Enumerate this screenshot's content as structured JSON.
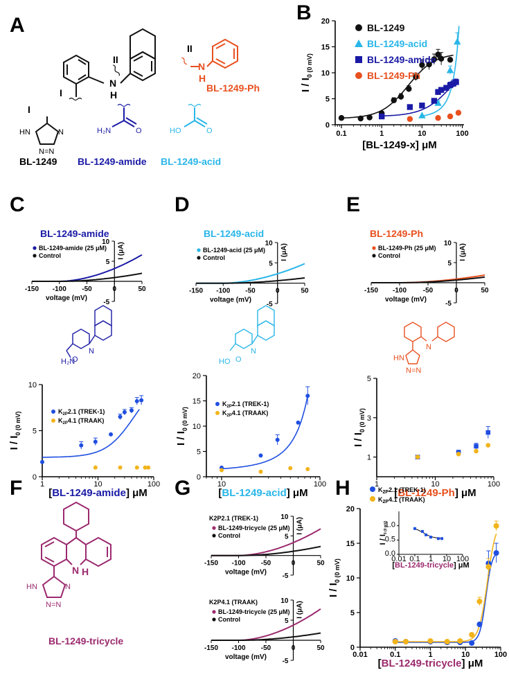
{
  "colors": {
    "black": "#111111",
    "acid": "#29b6e8",
    "amide": "#1a1aa6",
    "ph": "#e8501e",
    "trek": "#1f4fe0",
    "traak": "#f2b41c",
    "tricycle": "#9b2a6e"
  },
  "panels": {
    "A": "A",
    "B": "B",
    "C": "C",
    "D": "D",
    "E": "E",
    "F": "F",
    "G": "G",
    "H": "H"
  },
  "structures": {
    "roman_one": "I",
    "roman_two": "II",
    "nh": "N",
    "h": "H",
    "names": {
      "bl1249": "BL-1249",
      "amide": "BL-1249-amide",
      "acid": "BL-1249-acid",
      "ph": "BL-1249-Ph",
      "tricycle": "BL-1249-tricycle"
    },
    "tetrazole_hn": "HN",
    "tetrazole_n": "N",
    "tetrazole_nn": "N=N",
    "amide_h2n": "H₂N",
    "amide_o": "O",
    "acid_ho": "HO",
    "acid_o": "O"
  },
  "chart_data": [
    {
      "panel": "B",
      "type": "scatter",
      "xscale": "log",
      "xlabel": "[BL-1249-x] μM",
      "ylabel": "I / I",
      "ylabel_sub": "0 (0 mV)",
      "xlim": [
        0.07,
        110
      ],
      "ylim": [
        0,
        20
      ],
      "xticks": [
        "0.1",
        "1",
        "10",
        "100"
      ],
      "yticks": [
        "0",
        "5",
        "10",
        "15",
        "20"
      ],
      "series": [
        {
          "name": "BL-1249",
          "marker": "circle",
          "color": "#111111",
          "x": [
            0.1,
            0.3,
            0.5,
            1.0,
            2.0,
            3.0,
            4.7,
            7.0,
            10,
            15,
            20,
            25,
            30,
            50
          ],
          "y": [
            1.3,
            1.2,
            1.4,
            2.2,
            4.7,
            5.4,
            6.9,
            9.2,
            11.5,
            11.6,
            12.6,
            13.5,
            12.7,
            12.5
          ]
        },
        {
          "name": "BL-1249-acid",
          "marker": "triangle",
          "color": "#29b6e8",
          "x": [
            10,
            25,
            50,
            75
          ],
          "y": [
            1.8,
            4.2,
            10.5,
            16.0
          ]
        },
        {
          "name": "BL-1249-amide",
          "marker": "square",
          "color": "#1a1aa6",
          "x": [
            1,
            5,
            10,
            20,
            25,
            30,
            40,
            50,
            60,
            70
          ],
          "y": [
            1.6,
            3.4,
            3.7,
            4.6,
            6.3,
            6.7,
            7.1,
            7.6,
            7.9,
            8.2
          ]
        },
        {
          "name": "BL-1249-Ph",
          "marker": "circle",
          "color": "#e8501e",
          "x": [
            5,
            25,
            50,
            80
          ],
          "y": [
            1.1,
            1.3,
            1.6,
            2.3
          ]
        }
      ]
    },
    {
      "panel": "C-iv",
      "type": "line",
      "title": "BL-1249-amide",
      "xlabel": "voltage (mV)",
      "ylabel": "I (μA)",
      "xlim": [
        -150,
        50
      ],
      "ylim": [
        -5,
        10
      ],
      "xticks": [
        "-150",
        "-100",
        "-50",
        "0",
        "50"
      ],
      "yticks": [
        "10",
        "5",
        "-5"
      ],
      "series": [
        {
          "name": "BL-1249-amide (25 μM)",
          "color": "#1a1aa6",
          "v_rev": -100,
          "i_at_50": 6.6
        },
        {
          "name": "Control",
          "color": "#111111",
          "v_rev": -95,
          "i_at_50": 2.0
        }
      ]
    },
    {
      "panel": "D-iv",
      "type": "line",
      "title": "BL-1249-acid",
      "xlabel": "voltage (mV)",
      "ylabel": "I (μA)",
      "xlim": [
        -150,
        50
      ],
      "ylim": [
        -5,
        10
      ],
      "xticks": [
        "-150",
        "-100",
        "-50",
        "0",
        "50"
      ],
      "yticks": [
        "10",
        "5",
        "-5"
      ],
      "series": [
        {
          "name": "BL-1249-acid (25 μM)",
          "color": "#29b6e8",
          "v_rev": -100,
          "i_at_50": 4.8
        },
        {
          "name": "Control",
          "color": "#111111",
          "v_rev": -95,
          "i_at_50": 1.3
        }
      ]
    },
    {
      "panel": "E-iv",
      "type": "line",
      "title": "BL-1249-Ph",
      "xlabel": "voltage (mV)",
      "ylabel": "I (μA)",
      "xlim": [
        -150,
        50
      ],
      "ylim": [
        -5,
        10
      ],
      "xticks": [
        "-150",
        "-100",
        "-50",
        "0",
        "50"
      ],
      "yticks": [
        "10",
        "5",
        "-5"
      ],
      "series": [
        {
          "name": "BL-1249-Ph (25 μM)",
          "color": "#e8501e",
          "v_rev": -100,
          "i_at_50": 1.9
        },
        {
          "name": "Control",
          "color": "#111111",
          "v_rev": -95,
          "i_at_50": 1.4
        }
      ]
    },
    {
      "panel": "C",
      "type": "scatter",
      "xscale": "log",
      "xlabel": "[BL-1249-amide] μM",
      "xlabel_parts": [
        "[",
        "BL-1249-amide",
        "] μM"
      ],
      "ylabel": "I / I",
      "ylabel_sub": "0 (0 mV)",
      "xlim": [
        1,
        100
      ],
      "ylim": [
        0,
        10
      ],
      "xticks": [
        "1",
        "10",
        "100"
      ],
      "yticks": [
        "0",
        "5",
        "10"
      ],
      "series": [
        {
          "name": "K2P2.1 (TREK-1)",
          "label_main": "K",
          "label_sub": "2P",
          "label_rest": "2.1 (TREK-1)",
          "color": "#1f4fe0",
          "x": [
            1,
            5,
            9,
            17,
            25,
            30,
            40,
            50,
            60
          ],
          "y": [
            1.6,
            3.4,
            3.8,
            4.6,
            6.5,
            7.0,
            7.2,
            8.2,
            8.3
          ]
        },
        {
          "name": "K2P4.1 (TRAAK)",
          "label_main": "K",
          "label_sub": "2P",
          "label_rest": "4.1 (TRAAK)",
          "color": "#f2b41c",
          "x": [
            9,
            25,
            50,
            70,
            80
          ],
          "y": [
            1.0,
            1.0,
            1.0,
            1.0,
            1.0
          ]
        }
      ]
    },
    {
      "panel": "D",
      "type": "scatter",
      "xscale": "log",
      "xlabel": "[BL-1249-acid] μM",
      "xlabel_parts": [
        "[",
        "BL-1249-acid",
        "] μM"
      ],
      "ylabel": "I / I",
      "ylabel_sub": "0 (0 mV)",
      "xlim": [
        7,
        100
      ],
      "ylim": [
        0,
        20
      ],
      "xticks": [
        "10",
        "100"
      ],
      "yticks": [
        "0",
        "5",
        "10",
        "15",
        "20"
      ],
      "series": [
        {
          "name": "K2P2.1 (TREK-1)",
          "label_main": "K",
          "label_sub": "2P",
          "label_rest": "2.1 (TREK-1)",
          "color": "#1f4fe0",
          "x": [
            10,
            25,
            37,
            60,
            75
          ],
          "y": [
            1.8,
            4.2,
            7.3,
            10.7,
            16.0
          ]
        },
        {
          "name": "K2P4.1 (TRAAK)",
          "label_main": "K",
          "label_sub": "2P",
          "label_rest": "4.1 (TRAAK)",
          "color": "#f2b41c",
          "x": [
            10,
            25,
            50,
            75
          ],
          "y": [
            1.3,
            1.0,
            1.7,
            1.5
          ]
        }
      ]
    },
    {
      "panel": "E",
      "type": "scatter",
      "xscale": "log",
      "xlabel": "[BL-1249-Ph] μM",
      "xlabel_parts": [
        "[",
        "BL-1249-Ph",
        "] μM"
      ],
      "ylabel": "I / I",
      "ylabel_sub": "0 (0 mV)",
      "xlim": [
        1,
        100
      ],
      "ylim": [
        0,
        5
      ],
      "xticks": [
        "1",
        "10",
        "100"
      ],
      "yticks": [
        "1",
        "3",
        "5"
      ],
      "series": [
        {
          "name": "K2P2.1 (TREK-1)",
          "color": "#1f4fe0",
          "marker": "square",
          "x": [
            5,
            25,
            50,
            80
          ],
          "y": [
            1.0,
            1.25,
            1.55,
            2.25
          ]
        },
        {
          "name": "K2P4.1 (TRAAK)",
          "color": "#f2b41c",
          "marker": "circle",
          "x": [
            5,
            25,
            50,
            80
          ],
          "y": [
            1.0,
            1.15,
            1.3,
            1.6
          ]
        }
      ]
    },
    {
      "panel": "G-top",
      "type": "line",
      "title": "K2P2.1 (TREK-1)",
      "xlabel": "voltage (mV)",
      "ylabel": "I (μA)",
      "xlim": [
        -150,
        50
      ],
      "ylim": [
        -5,
        10
      ],
      "xticks": [
        "-150",
        "-100",
        "-50",
        "0",
        "50"
      ],
      "yticks": [
        "10",
        "5",
        "-5"
      ],
      "series": [
        {
          "name": "BL-1249-tricycle (25 μM)",
          "color": "#9b2a6e",
          "v_rev": -100,
          "i_at_50": 6.8
        },
        {
          "name": "Control",
          "color": "#111111",
          "v_rev": -95,
          "i_at_50": 2.3
        }
      ]
    },
    {
      "panel": "G-bottom",
      "type": "line",
      "title": "K2P4.1 (TRAAK)",
      "xlabel": "voltage (mV)",
      "ylabel": "I (μA)",
      "xlim": [
        -150,
        50
      ],
      "ylim": [
        -5,
        10
      ],
      "xticks": [
        "-150",
        "-100",
        "-50",
        "0",
        "50"
      ],
      "yticks": [
        "10",
        "5",
        "-5"
      ],
      "series": [
        {
          "name": "BL-1249-tricycle (25 μM)",
          "color": "#9b2a6e",
          "v_rev": -100,
          "i_at_50": 7.8
        },
        {
          "name": "Control",
          "color": "#111111",
          "v_rev": -95,
          "i_at_50": 1.8
        }
      ]
    },
    {
      "panel": "H",
      "type": "scatter",
      "xscale": "log",
      "xlabel": "[BL-1249-tricycle] μM",
      "xlabel_parts": [
        "[",
        "BL-1249-tricycle",
        "] μM"
      ],
      "ylabel": "I / I",
      "ylabel_sub": "0 (0 mV)",
      "xlim": [
        0.01,
        100
      ],
      "ylim": [
        0,
        20
      ],
      "xticks": [
        "0.01",
        "0.1",
        "1",
        "10",
        "100"
      ],
      "yticks": [
        "0",
        "5",
        "10",
        "15",
        "20"
      ],
      "series": [
        {
          "name": "K2P2.1 (TREK-1)",
          "label_main": "K",
          "label_sub": "2P",
          "label_rest": "2.1 (TREK-1)",
          "color": "#1f4fe0",
          "x": [
            0.1,
            0.2,
            1,
            3,
            7,
            15,
            25,
            45,
            75
          ],
          "y": [
            0.9,
            0.8,
            0.8,
            0.7,
            0.7,
            0.6,
            3.3,
            12.1,
            13.6
          ]
        },
        {
          "name": "K2P4.1 (TRAAK)",
          "label_main": "K",
          "label_sub": "2P",
          "label_rest": "4.1 (TRAAK)",
          "color": "#f2b41c",
          "x": [
            0.1,
            0.2,
            1,
            3,
            7,
            15,
            25,
            45,
            75
          ],
          "y": [
            0.8,
            0.8,
            0.9,
            0.8,
            0.9,
            1.8,
            6.6,
            11.6,
            17.5
          ]
        }
      ],
      "inset": {
        "xscale": "log",
        "xlabel": "[BL-1249-tricycle] μM",
        "xlabel_parts": [
          "[",
          "BL-1249-tricycle",
          "] μM"
        ],
        "ylabel": "I / I",
        "ylabel_sub": "0 (0 mV)",
        "xlim": [
          0.01,
          100
        ],
        "ylim": [
          0,
          1.5
        ],
        "xticks": [
          "0.01",
          "0.1",
          "1",
          "10",
          "100"
        ],
        "yticks": [
          "0.0",
          "0.5",
          "1.0"
        ],
        "x": [
          0.1,
          0.3,
          0.5,
          1,
          3,
          5
        ],
        "y": [
          0.9,
          0.8,
          0.68,
          0.6,
          0.55,
          0.55
        ]
      }
    }
  ]
}
